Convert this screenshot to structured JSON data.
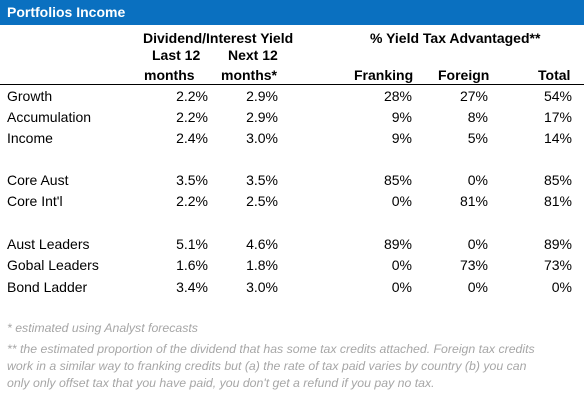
{
  "title": "Portfolios Income",
  "headers": {
    "yield_group": "Dividend/Interest Yield",
    "tax_group": "% Yield Tax Advantaged**",
    "last12_line1": "Last 12",
    "last12_line2": "months",
    "next12_line1": "Next 12",
    "next12_line2": "months*",
    "franking": "Franking",
    "foreign": "Foreign",
    "total": "Total"
  },
  "rows": [
    {
      "label": "Growth",
      "last12": "2.2%",
      "next12": "2.9%",
      "franking": "28%",
      "foreign": "27%",
      "total": "54%"
    },
    {
      "label": "Accumulation",
      "last12": "2.2%",
      "next12": "2.9%",
      "franking": "9%",
      "foreign": "8%",
      "total": "17%"
    },
    {
      "label": "Income",
      "last12": "2.4%",
      "next12": "3.0%",
      "franking": "9%",
      "foreign": "5%",
      "total": "14%"
    },
    {
      "label": "Core Aust",
      "last12": "3.5%",
      "next12": "3.5%",
      "franking": "85%",
      "foreign": "0%",
      "total": "85%"
    },
    {
      "label": "Core Int'l",
      "last12": "2.2%",
      "next12": "2.5%",
      "franking": "0%",
      "foreign": "81%",
      "total": "81%"
    },
    {
      "label": "Aust Leaders",
      "last12": "5.1%",
      "next12": "4.6%",
      "franking": "89%",
      "foreign": "0%",
      "total": "89%"
    },
    {
      "label": "Gobal Leaders",
      "last12": "1.6%",
      "next12": "1.8%",
      "franking": "0%",
      "foreign": "73%",
      "total": "73%"
    },
    {
      "label": "Bond Ladder",
      "last12": "3.4%",
      "next12": "3.0%",
      "franking": "0%",
      "foreign": "0%",
      "total": "0%"
    }
  ],
  "footnotes": {
    "note1": "* estimated using Analyst forecasts",
    "note2_line1": "** the estimated proportion of the dividend that has some tax credits attached. Foreign tax credits",
    "note2_line2": "work in a similar way to franking credits but (a) the rate of tax paid varies by country (b) you can",
    "note2_line3": "only only offset tax that you have paid, you don't get a refund if you pay no tax."
  },
  "colors": {
    "title_bar": "#0a70c0",
    "title_text": "#ffffff",
    "footnote_text": "#a6a6a6"
  }
}
